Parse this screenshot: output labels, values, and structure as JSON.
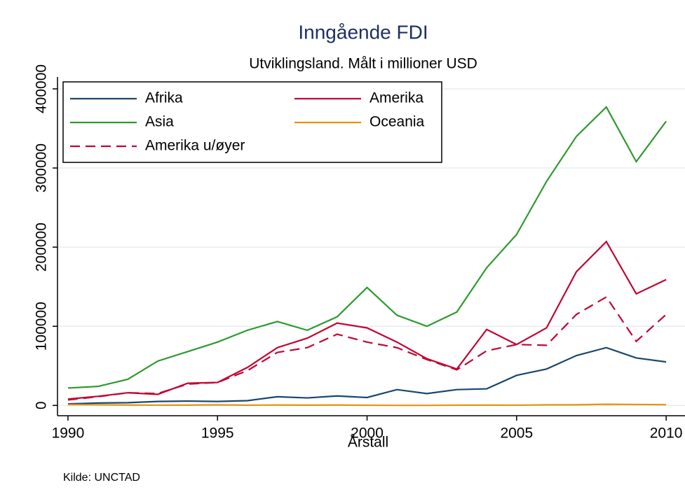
{
  "chart_data": {
    "type": "line",
    "title": "Inngående FDI",
    "subtitle": "Utviklingsland. Målt i millioner USD",
    "x_label": "Årstall",
    "source": "Kilde: UNCTAD",
    "x": [
      1990,
      1991,
      1992,
      1993,
      1994,
      1995,
      1996,
      1997,
      1998,
      1999,
      2000,
      2001,
      2002,
      2003,
      2004,
      2005,
      2006,
      2007,
      2008,
      2009,
      2010
    ],
    "series": [
      {
        "name": "Afrika",
        "color": "#1a476f",
        "dash": false,
        "values": [
          2000,
          3000,
          3500,
          5000,
          5500,
          5000,
          6000,
          11000,
          9500,
          12000,
          10000,
          20000,
          15000,
          20000,
          21000,
          38000,
          46000,
          63000,
          73000,
          60000,
          55000
        ]
      },
      {
        "name": "Amerika",
        "color": "#c10534",
        "dash": false,
        "values": [
          8000,
          11500,
          16000,
          14000,
          28000,
          29000,
          48000,
          73000,
          85000,
          104000,
          98000,
          80000,
          59000,
          46000,
          96000,
          77000,
          98000,
          169000,
          207000,
          141000,
          159000
        ]
      },
      {
        "name": "Asia",
        "color": "#2e9a2e",
        "dash": false,
        "values": [
          22000,
          24000,
          33000,
          56000,
          68000,
          80000,
          95000,
          106000,
          95000,
          112000,
          149000,
          114000,
          100000,
          118000,
          174000,
          216000,
          283000,
          340000,
          377000,
          308000,
          359000
        ]
      },
      {
        "name": "Oceania",
        "color": "#e8910d",
        "dash": false,
        "values": [
          1000,
          800,
          500,
          300,
          400,
          700,
          300,
          500,
          400,
          500,
          200,
          100,
          100,
          300,
          400,
          300,
          700,
          800,
          1500,
          1200,
          1000
        ]
      },
      {
        "name": "Amerika u/øyer",
        "color": "#c10534",
        "dash": true,
        "values": [
          7000,
          11000,
          16000,
          15000,
          27000,
          29000,
          44000,
          67000,
          73000,
          90000,
          80000,
          73000,
          58000,
          45000,
          69000,
          77000,
          76000,
          115000,
          137000,
          81000,
          115000
        ]
      }
    ],
    "xlim": [
      1989.65,
      2010.63
    ],
    "ylim": [
      -13000,
      415000
    ],
    "xticks": [
      1990,
      1995,
      2000,
      2005,
      2010
    ],
    "yticks": [
      0,
      100000,
      200000,
      300000,
      400000
    ],
    "grid": true,
    "legend_position": "top-left"
  }
}
